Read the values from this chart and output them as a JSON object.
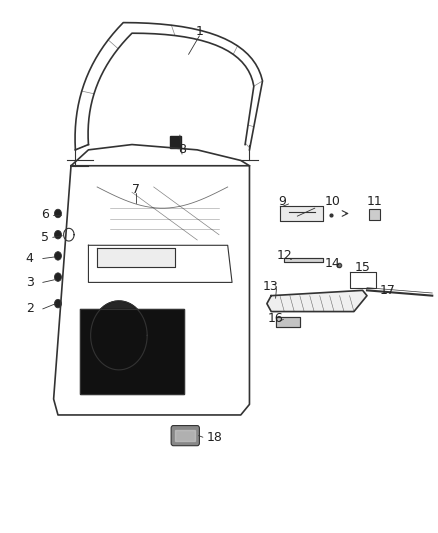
{
  "title": "",
  "background_color": "#ffffff",
  "fig_width": 4.38,
  "fig_height": 5.33,
  "dpi": 100,
  "line_color": "#333333",
  "label_fontsize": 9,
  "text_color": "#222222"
}
